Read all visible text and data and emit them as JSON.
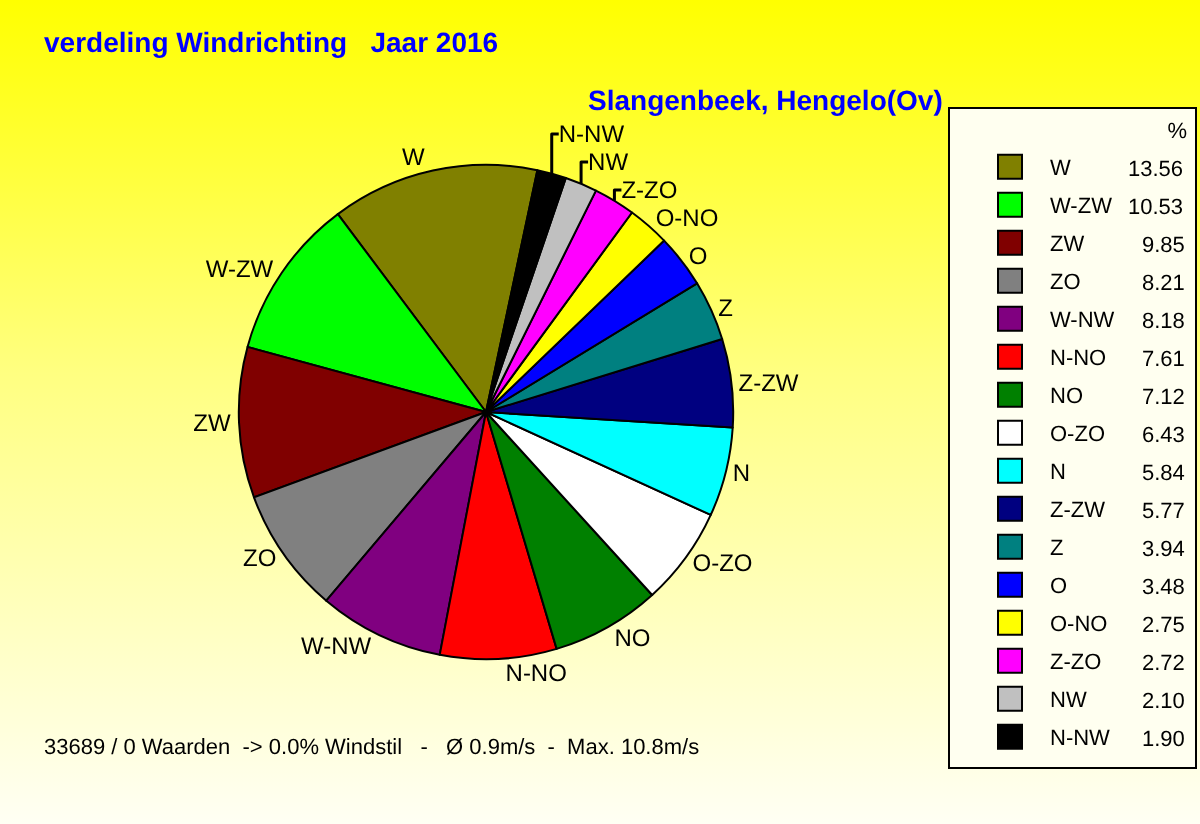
{
  "chart_data": {
    "type": "pie",
    "title": "verdeling Windrichting   Jaar 2016",
    "subtitle": "Slangenbeek, Hengelo(Ov)",
    "legend_title": "%",
    "categories": [
      "W",
      "W-ZW",
      "ZW",
      "ZO",
      "W-NW",
      "N-NO",
      "NO",
      "O-ZO",
      "N",
      "Z-ZW",
      "Z",
      "O",
      "O-NO",
      "Z-ZO",
      "NW",
      "N-NW"
    ],
    "values": [
      13.56,
      10.53,
      9.85,
      8.21,
      8.18,
      7.61,
      7.12,
      6.43,
      5.84,
      5.77,
      3.94,
      3.48,
      2.75,
      2.72,
      2.1,
      1.9
    ],
    "value_labels": [
      "13.56",
      "10.53",
      "9.85",
      "8.21",
      "8.18",
      "7.61",
      "7.12",
      "6.43",
      "5.84",
      "5.77",
      "3.94",
      "3.48",
      "2.75",
      "2.72",
      "2.10",
      "1.90"
    ],
    "colors": [
      "#808000",
      "#00ff00",
      "#800000",
      "#808080",
      "#800080",
      "#ff0000",
      "#008000",
      "#ffffff",
      "#00ffff",
      "#000080",
      "#008080",
      "#0000ff",
      "#ffff00",
      "#ff00ff",
      "#c0c0c0",
      "#000000"
    ],
    "legend": "right",
    "annotations": [
      "33689 / 0 Waarden  -> 0.0% Windstil   -   Ø 0.9m/s  -  Max. 10.8m/s"
    ]
  }
}
